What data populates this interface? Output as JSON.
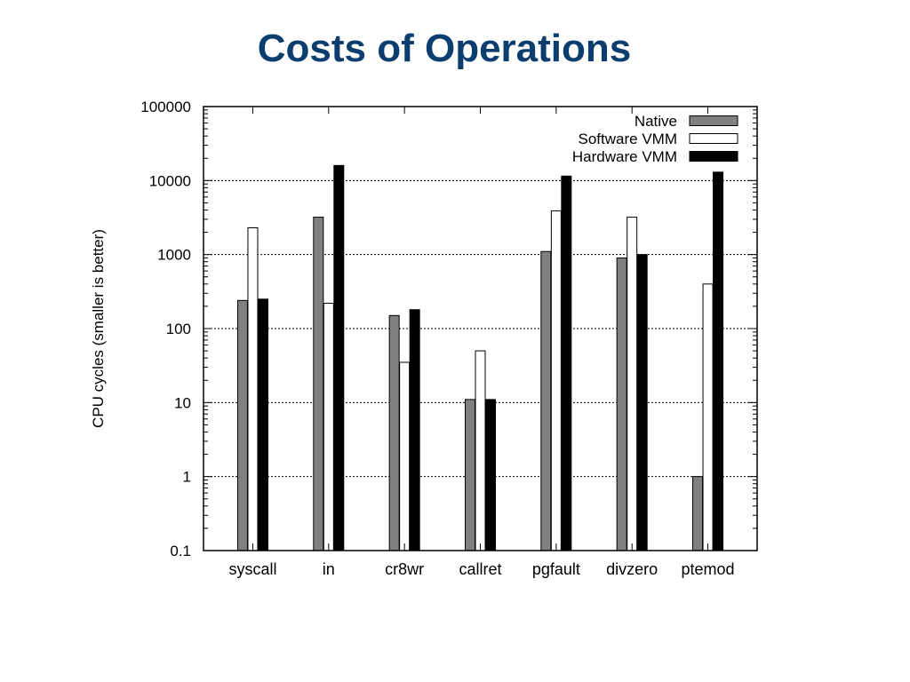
{
  "slide": {
    "title": "Costs of Operations"
  },
  "chart_data": {
    "type": "bar",
    "scale": "log",
    "ylabel": "CPU cycles (smaller is better)",
    "ylim": [
      0.1,
      100000
    ],
    "yticks": [
      {
        "value": 0.1,
        "label": "0.1"
      },
      {
        "value": 1,
        "label": "1"
      },
      {
        "value": 10,
        "label": "10"
      },
      {
        "value": 100,
        "label": "100"
      },
      {
        "value": 1000,
        "label": "1000"
      },
      {
        "value": 10000,
        "label": "10000"
      },
      {
        "value": 100000,
        "label": "100000"
      }
    ],
    "grid": "horizontal-dotted",
    "legend_position": "top-right",
    "categories": [
      "syscall",
      "in",
      "cr8wr",
      "callret",
      "pgfault",
      "divzero",
      "ptemod"
    ],
    "series": [
      {
        "name": "Native",
        "color": "#808080",
        "values": [
          240,
          3200,
          150,
          11,
          1100,
          900,
          1
        ]
      },
      {
        "name": "Software VMM",
        "color": "#ffffff",
        "values": [
          2300,
          220,
          35,
          50,
          3900,
          3200,
          400
        ]
      },
      {
        "name": "Hardware VMM",
        "color": "#000000",
        "values": [
          250,
          16000,
          180,
          11,
          11500,
          1000,
          13000
        ]
      }
    ]
  }
}
